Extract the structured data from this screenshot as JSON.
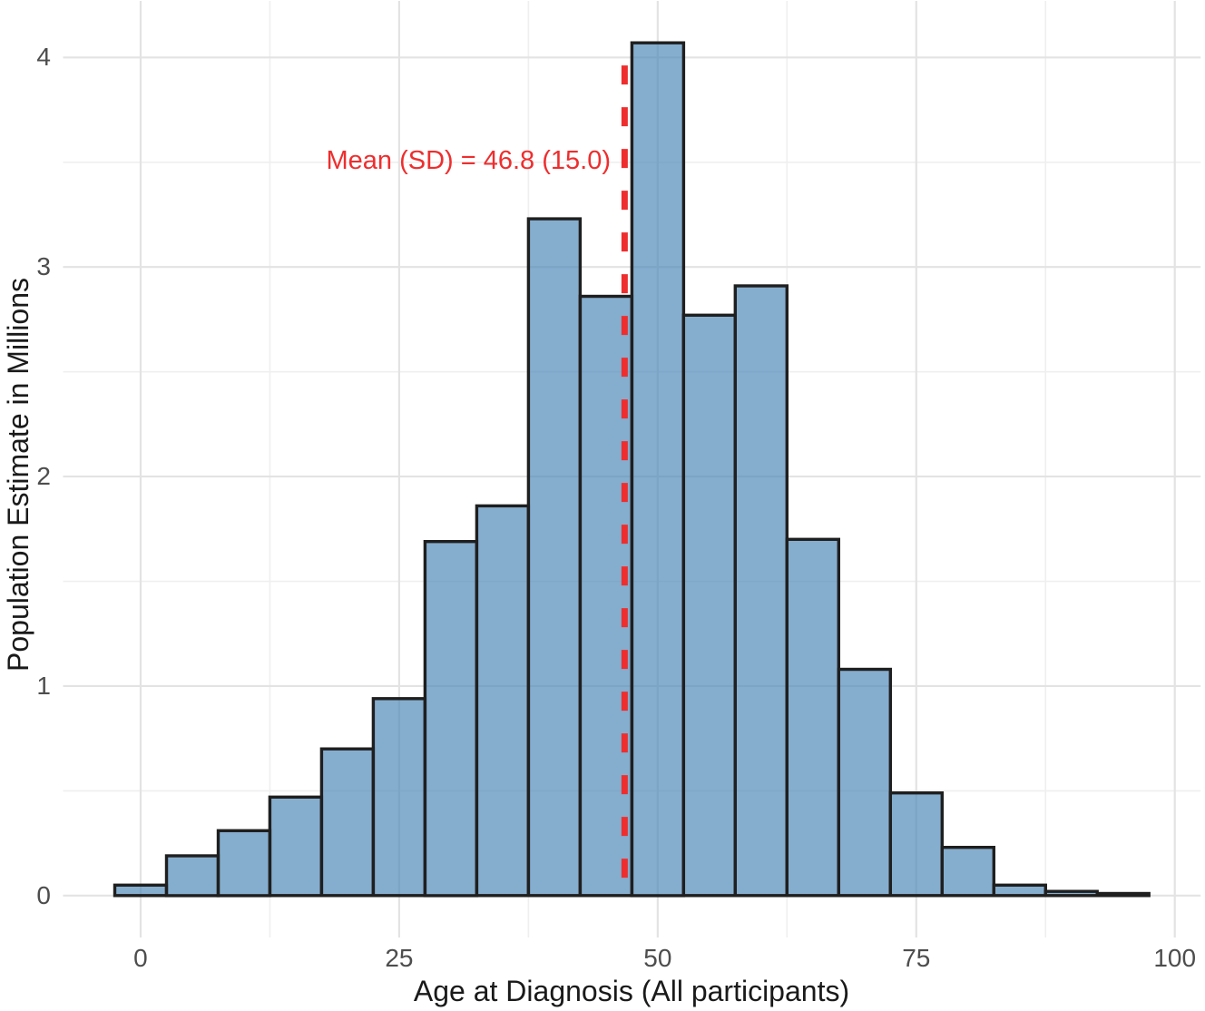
{
  "chart_data": {
    "type": "bar",
    "subtype": "histogram",
    "title": "",
    "xlabel": "Age at Diagnosis (All participants)",
    "ylabel": "Population Estimate in Millions",
    "bin_width": 5,
    "bin_centers": [
      0,
      5,
      10,
      15,
      20,
      25,
      30,
      35,
      40,
      45,
      50,
      55,
      60,
      65,
      70,
      75,
      80,
      85,
      90,
      95
    ],
    "values": [
      0.05,
      0.19,
      0.31,
      0.47,
      0.7,
      0.94,
      1.69,
      1.86,
      3.23,
      2.86,
      4.07,
      2.77,
      2.91,
      1.7,
      1.08,
      0.49,
      0.23,
      0.05,
      0.02,
      0.01
    ],
    "x_ticks": [
      0,
      25,
      50,
      75,
      100
    ],
    "y_ticks": [
      0,
      1,
      2,
      3,
      4
    ],
    "x_minor_ticks": [
      12.5,
      37.5,
      62.5,
      87.5
    ],
    "y_minor_ticks": [
      0.5,
      1.5,
      2.5,
      3.5
    ],
    "xlim": [
      -7.5,
      102.5
    ],
    "ylim": [
      -0.2,
      4.27
    ],
    "grid": "major-and-minor",
    "legend": "none",
    "mean": 46.8,
    "sd": 15.0,
    "mean_line": {
      "x": 46.8,
      "style": "dashed",
      "color": "#ee2e2e"
    },
    "annotation": {
      "text": "Mean (SD) = 46.8 (15.0)",
      "color": "#ee2e2e"
    },
    "colors": {
      "bar_fill": "rgba(70,130,180,0.66)",
      "bar_border": "#1f1f1f",
      "grid_major": "#e3e3e3",
      "grid_minor": "#efefef",
      "tick_label": "#4d4d4d",
      "axis_title": "#1a1a1a"
    }
  }
}
